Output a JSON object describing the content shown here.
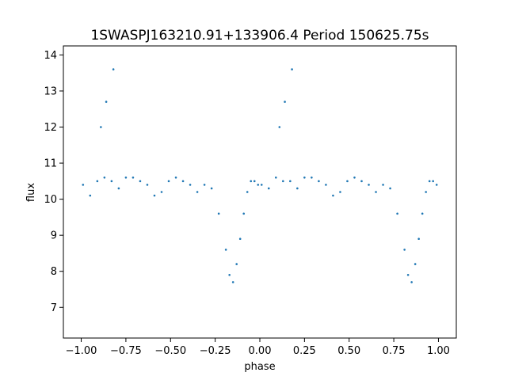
{
  "chart_data": {
    "type": "scatter",
    "title": "1SWASPJ163210.91+133906.4 Period 150625.75s",
    "xlabel": "phase",
    "ylabel": "flux",
    "xlim": [
      -1.1,
      1.1
    ],
    "ylim": [
      6.15,
      14.25
    ],
    "xticks": [
      -1.0,
      -0.75,
      -0.5,
      -0.25,
      0.0,
      0.25,
      0.5,
      0.75,
      1.0
    ],
    "xtick_labels": [
      "−1.00",
      "−0.75",
      "−0.50",
      "−0.25",
      "0.00",
      "0.25",
      "0.50",
      "0.75",
      "1.00"
    ],
    "yticks": [
      7,
      8,
      9,
      10,
      11,
      12,
      13,
      14
    ],
    "ytick_labels": [
      "7",
      "8",
      "9",
      "10",
      "11",
      "12",
      "13",
      "14"
    ],
    "grid": false,
    "legend": "none",
    "marker_color": "#1f77b4",
    "series": [
      {
        "x": [
          -0.99,
          -0.95,
          -0.91,
          -0.87,
          -0.83,
          -0.79,
          -0.75,
          -0.71,
          -0.67,
          -0.63,
          -0.59,
          -0.55,
          -0.51,
          -0.47,
          -0.43,
          -0.39,
          -0.35,
          -0.31,
          -0.27,
          -0.23,
          -0.19,
          -0.17,
          -0.15,
          -0.13,
          -0.11,
          -0.09,
          -0.07,
          -0.05,
          -0.03,
          -0.01,
          0.01,
          0.05,
          0.09,
          0.13,
          0.17,
          0.21,
          0.25,
          0.29,
          0.33,
          0.37,
          0.41,
          0.45,
          0.49,
          0.53,
          0.57,
          0.61,
          0.65,
          0.69,
          0.73,
          0.77,
          0.81,
          0.83,
          0.85,
          0.87,
          0.89,
          0.91,
          0.93,
          0.95,
          0.97,
          0.99,
          -0.89,
          -0.86,
          -0.82,
          0.11,
          0.14,
          0.18
        ],
        "y": [
          10.4,
          10.1,
          10.5,
          10.6,
          10.5,
          10.3,
          10.6,
          10.6,
          10.5,
          10.4,
          10.1,
          10.2,
          10.5,
          10.6,
          10.5,
          10.4,
          10.2,
          10.4,
          10.3,
          9.6,
          8.6,
          7.9,
          7.7,
          8.2,
          8.9,
          9.6,
          10.2,
          10.5,
          10.5,
          10.4,
          10.4,
          10.3,
          10.6,
          10.5,
          10.5,
          10.3,
          10.6,
          10.6,
          10.5,
          10.4,
          10.1,
          10.2,
          10.5,
          10.6,
          10.5,
          10.4,
          10.2,
          10.4,
          10.3,
          9.6,
          8.6,
          7.9,
          7.7,
          8.2,
          8.9,
          9.6,
          10.2,
          10.5,
          10.5,
          10.4,
          12.0,
          12.7,
          13.6,
          12.0,
          12.7,
          13.6
        ]
      }
    ]
  }
}
